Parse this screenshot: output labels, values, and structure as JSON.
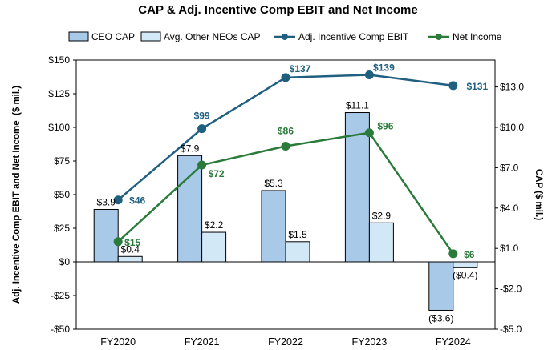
{
  "chart_data": {
    "type": "bar+line",
    "title": "CAP & Adj. Incentive Comp EBIT and Net Income",
    "categories": [
      "FY2020",
      "FY2021",
      "FY2022",
      "FY2023",
      "FY2024"
    ],
    "left_axis": {
      "label": "Adj. Incentive Comp EBIT and Net Income  ($ mil.)",
      "range": [
        -50,
        150
      ],
      "ticks": [
        "$150",
        "$125",
        "$100",
        "$75",
        "$50",
        "$25",
        "$0",
        "-$25",
        "-$50"
      ],
      "tick_values": [
        150,
        125,
        100,
        75,
        50,
        25,
        0,
        -25,
        -50
      ]
    },
    "right_axis": {
      "label": "CAP ($ mil.)",
      "range": [
        -5,
        15
      ],
      "ticks": [
        "$13.0",
        "$10.0",
        "$7.0",
        "$4.0",
        "$1.0",
        "-$2.0",
        "-$5.0"
      ],
      "tick_values": [
        13,
        10,
        7,
        4,
        1,
        -2,
        -5
      ]
    },
    "bar_series": [
      {
        "name": "CEO CAP",
        "color": "#a9c9e8",
        "values": [
          3.9,
          7.9,
          5.3,
          11.1,
          -3.6
        ],
        "labels": [
          "$3.9",
          "$7.9",
          "$5.3",
          "$11.1",
          "($3.6)"
        ]
      },
      {
        "name": "Avg. Other NEOs CAP",
        "color": "#d3e8f7",
        "values": [
          0.4,
          2.2,
          1.5,
          2.9,
          -0.4
        ],
        "labels": [
          "$0.4",
          "$2.2",
          "$1.5",
          "$2.9",
          "($0.4)"
        ]
      }
    ],
    "line_series": [
      {
        "name": "Adj. Incentive Comp EBIT",
        "color": "#1f5f7f",
        "values": [
          46,
          99,
          137,
          139,
          131
        ],
        "labels": [
          "$46",
          "$99",
          "$137",
          "$139",
          "$131"
        ]
      },
      {
        "name": "Net Income",
        "color": "#2a7a3a",
        "values": [
          15,
          72,
          86,
          96,
          6
        ],
        "labels": [
          "$15",
          "$72",
          "$86",
          "$96",
          "$6"
        ]
      }
    ],
    "legend_position": "top-center"
  }
}
